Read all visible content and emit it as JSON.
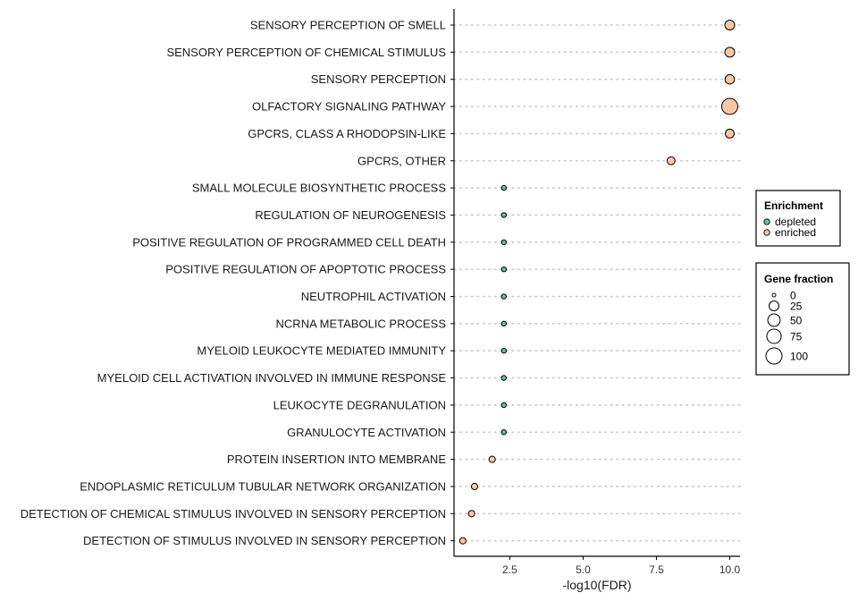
{
  "chart_data": {
    "type": "scatter",
    "xlabel": "-log10(FDR)",
    "xlim": [
      0.6,
      10.35
    ],
    "xticks": [
      2.5,
      5.0,
      7.5,
      10.0
    ],
    "xtick_labels": [
      "2.5",
      "5.0",
      "7.5",
      "10.0"
    ],
    "grid": "horizontal dotted",
    "legend_placement": "right",
    "colors": {
      "depleted": "#66c2a5",
      "enriched": "#fcc5a6"
    },
    "points": [
      {
        "label": "SENSORY PERCEPTION OF SMELL",
        "x": 10.0,
        "enrichment": "enriched",
        "gene_fraction": 25
      },
      {
        "label": "SENSORY PERCEPTION OF CHEMICAL STIMULUS",
        "x": 10.0,
        "enrichment": "enriched",
        "gene_fraction": 25
      },
      {
        "label": "SENSORY PERCEPTION",
        "x": 10.0,
        "enrichment": "enriched",
        "gene_fraction": 22
      },
      {
        "label": "OLFACTORY SIGNALING PATHWAY",
        "x": 10.0,
        "enrichment": "enriched",
        "gene_fraction": 100
      },
      {
        "label": "GPCRS, CLASS A RHODOPSIN-LIKE",
        "x": 10.0,
        "enrichment": "enriched",
        "gene_fraction": 18
      },
      {
        "label": "GPCRS, OTHER",
        "x": 8.0,
        "enrichment": "enriched",
        "gene_fraction": 12
      },
      {
        "label": "SMALL MOLECULE BIOSYNTHETIC PROCESS",
        "x": 2.3,
        "enrichment": "depleted",
        "gene_fraction": 1
      },
      {
        "label": "REGULATION OF NEUROGENESIS",
        "x": 2.3,
        "enrichment": "depleted",
        "gene_fraction": 1
      },
      {
        "label": "POSITIVE REGULATION OF PROGRAMMED CELL DEATH",
        "x": 2.3,
        "enrichment": "depleted",
        "gene_fraction": 1
      },
      {
        "label": "POSITIVE REGULATION OF APOPTOTIC PROCESS",
        "x": 2.3,
        "enrichment": "depleted",
        "gene_fraction": 1
      },
      {
        "label": "NEUTROPHIL ACTIVATION",
        "x": 2.3,
        "enrichment": "depleted",
        "gene_fraction": 1
      },
      {
        "label": "NCRNA METABOLIC PROCESS",
        "x": 2.3,
        "enrichment": "depleted",
        "gene_fraction": 1
      },
      {
        "label": "MYELOID LEUKOCYTE MEDIATED IMMUNITY",
        "x": 2.3,
        "enrichment": "depleted",
        "gene_fraction": 1
      },
      {
        "label": "MYELOID CELL ACTIVATION INVOLVED IN IMMUNE RESPONSE",
        "x": 2.3,
        "enrichment": "depleted",
        "gene_fraction": 1
      },
      {
        "label": "LEUKOCYTE DEGRANULATION",
        "x": 2.3,
        "enrichment": "depleted",
        "gene_fraction": 1
      },
      {
        "label": "GRANULOCYTE ACTIVATION",
        "x": 2.3,
        "enrichment": "depleted",
        "gene_fraction": 1
      },
      {
        "label": "PROTEIN INSERTION INTO MEMBRANE",
        "x": 1.9,
        "enrichment": "enriched",
        "gene_fraction": 5
      },
      {
        "label": "ENDOPLASMIC RETICULUM TUBULAR NETWORK ORGANIZATION",
        "x": 1.3,
        "enrichment": "enriched",
        "gene_fraction": 5
      },
      {
        "label": "DETECTION OF CHEMICAL STIMULUS INVOLVED IN SENSORY PERCEPTION",
        "x": 1.2,
        "enrichment": "enriched",
        "gene_fraction": 5
      },
      {
        "label": "DETECTION OF STIMULUS INVOLVED IN SENSORY PERCEPTION",
        "x": 0.9,
        "enrichment": "enriched",
        "gene_fraction": 5
      }
    ]
  },
  "legend": {
    "enrichment": {
      "title": "Enrichment",
      "items": [
        {
          "label": "depleted",
          "color": "#66c2a5"
        },
        {
          "label": "enriched",
          "color": "#fcc5a6"
        }
      ]
    },
    "gene_fraction": {
      "title": "Gene fraction",
      "items": [
        {
          "label": "0",
          "value": 0
        },
        {
          "label": "25",
          "value": 25
        },
        {
          "label": "50",
          "value": 50
        },
        {
          "label": "75",
          "value": 75
        },
        {
          "label": "100",
          "value": 100
        }
      ]
    }
  }
}
